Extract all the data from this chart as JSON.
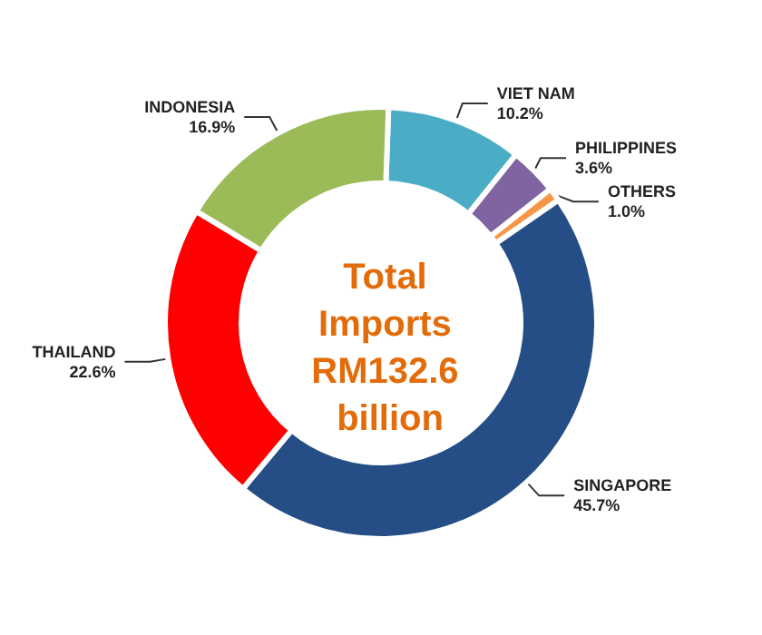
{
  "chart_data": {
    "type": "donut",
    "title": "Total Imports RM132.6 billion",
    "categories": [
      "VIET NAM",
      "PHILIPPINES",
      "OTHERS",
      "SINGAPORE",
      "THAILAND",
      "INDONESIA"
    ],
    "values": [
      10.2,
      3.6,
      1.0,
      45.7,
      22.6,
      16.9
    ],
    "colors": [
      "#4bacc6",
      "#8064a2",
      "#f79646",
      "#254e86",
      "#ff0000",
      "#9bbb59"
    ],
    "value_labels": [
      "10.2%",
      "3.6%",
      "1.0%",
      "45.7%",
      "22.6%",
      "16.9%"
    ],
    "legend": false
  }
}
